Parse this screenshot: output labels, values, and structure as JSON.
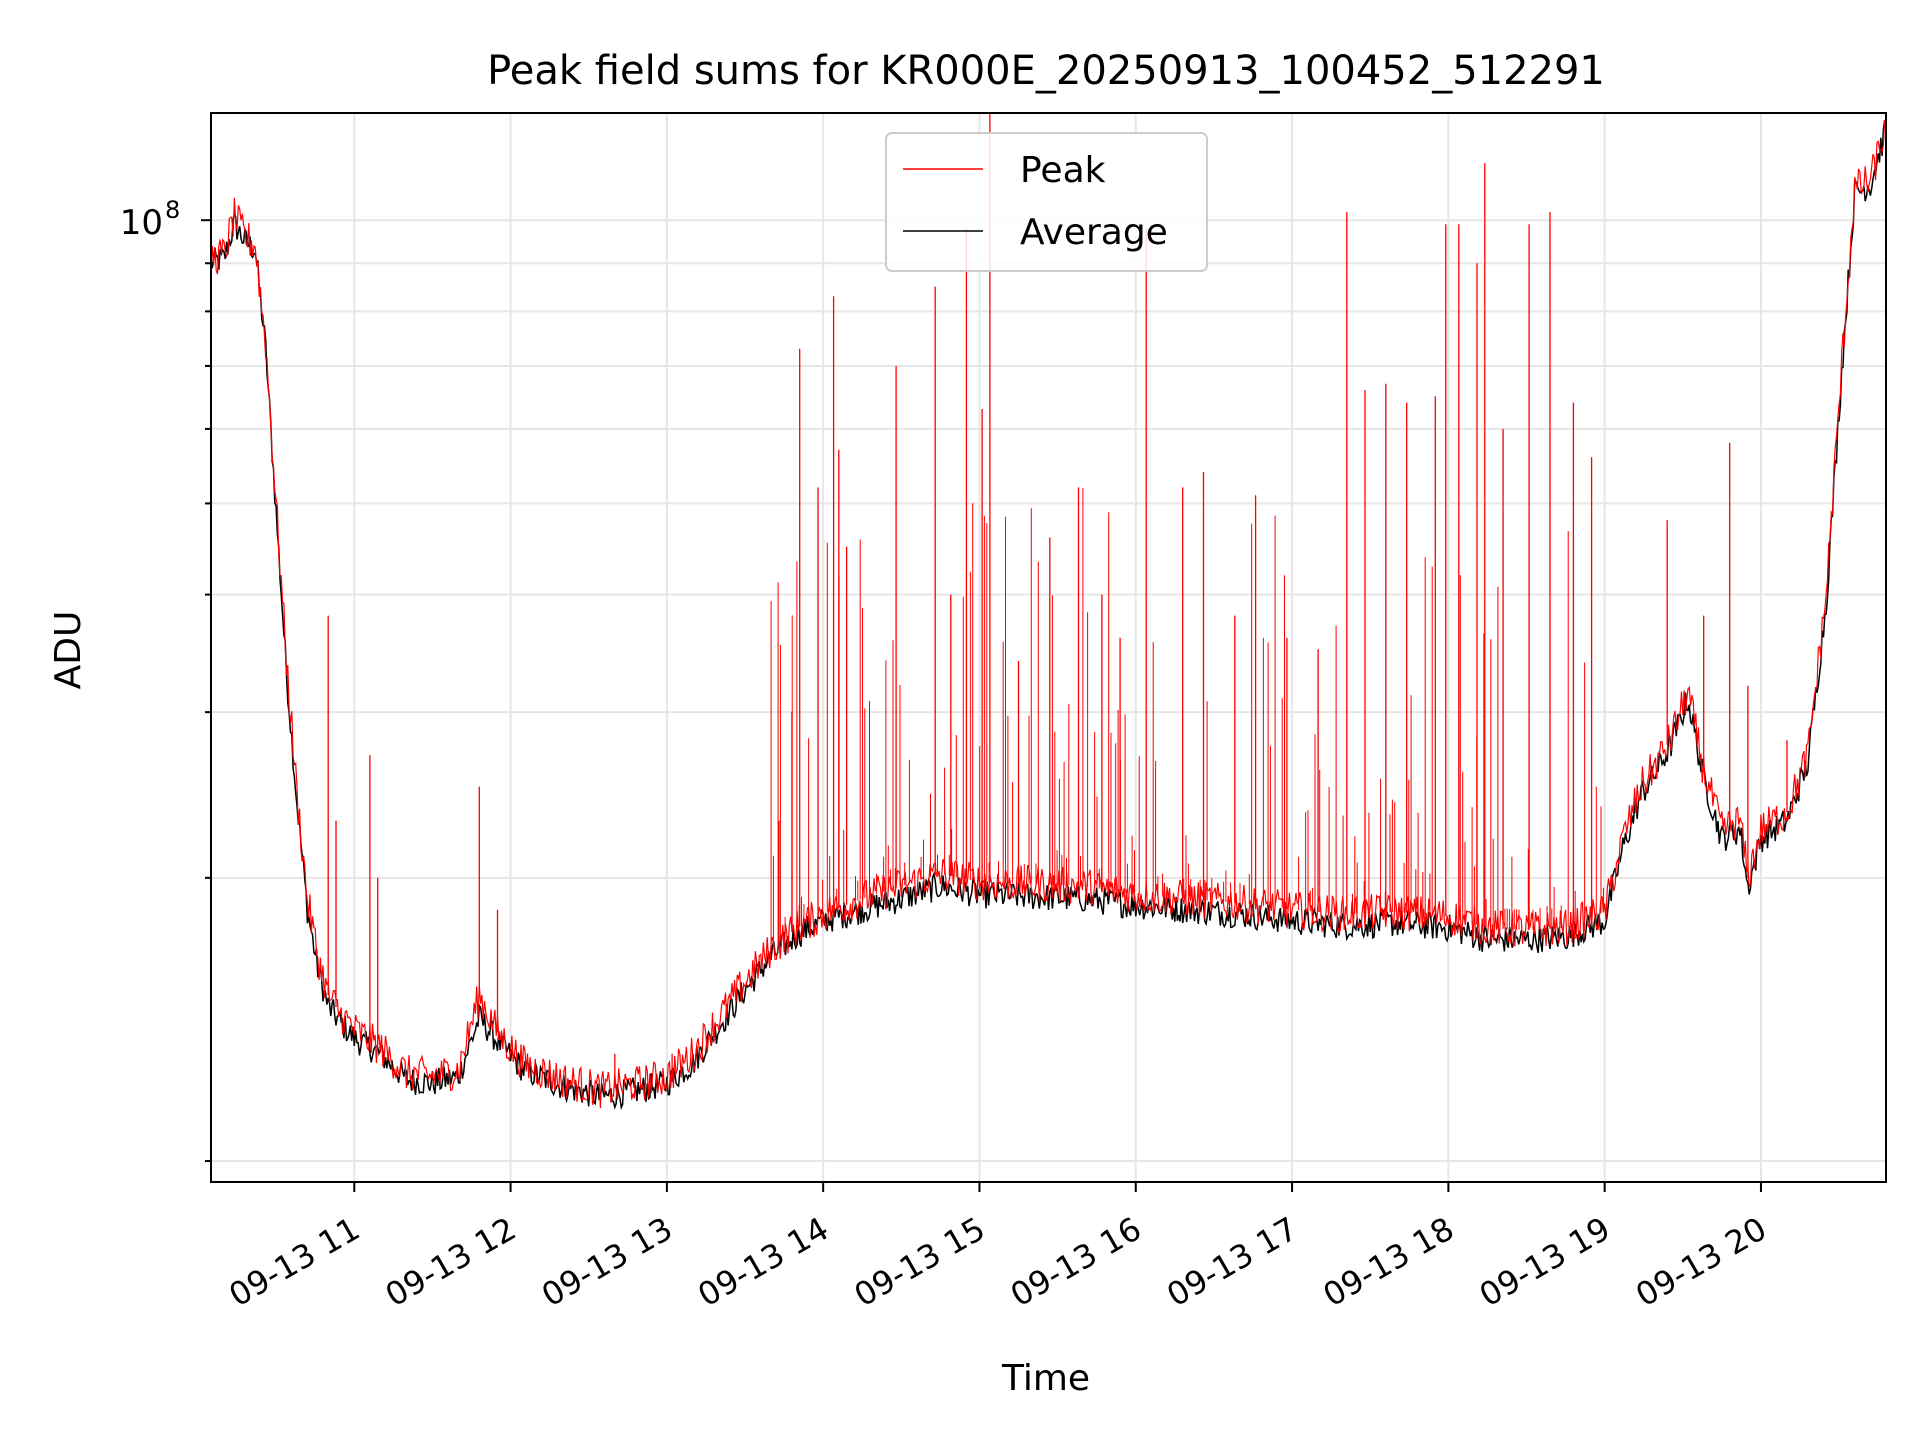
{
  "chart_data": {
    "type": "line",
    "title": "Peak field sums for KR000E_20250913_100452_512291",
    "xlabel": "Time",
    "ylabel": "ADU",
    "yscale": "log",
    "grid": true,
    "legend_placement": "upper center",
    "x_range": [
      "2025-09-13 10:05",
      "2025-09-13 20:48"
    ],
    "y_range": [
      9500000,
      130000000
    ],
    "x_ticks": [
      "09-13 11",
      "09-13 12",
      "09-13 13",
      "09-13 14",
      "09-13 15",
      "09-13 16",
      "09-13 17",
      "09-13 18",
      "09-13 19",
      "09-13 20"
    ],
    "y_tick_labels": [
      {
        "value": 100000000,
        "label": "10",
        "exponent": "8"
      }
    ],
    "series": [
      {
        "name": "Peak",
        "color": "#ff0000",
        "points": [
          [
            "10:05",
            91000000
          ],
          [
            "10:10",
            92000000
          ],
          [
            "10:14",
            101000000
          ],
          [
            "10:18",
            96000000
          ],
          [
            "10:22",
            94000000
          ],
          [
            "10:26",
            74000000
          ],
          [
            "10:30",
            50000000
          ],
          [
            "10:34",
            34000000
          ],
          [
            "10:38",
            24500000
          ],
          [
            "10:42",
            19000000
          ],
          [
            "10:46",
            16500000
          ],
          [
            "10:50",
            15000000
          ],
          [
            "10:55",
            14300000
          ],
          [
            "11:00",
            13800000
          ],
          [
            "11:10",
            13200000
          ],
          [
            "11:20",
            12400000
          ],
          [
            "11:30",
            12300000
          ],
          [
            "11:40",
            12500000
          ],
          [
            "11:48",
            15000000
          ],
          [
            "11:55",
            13700000
          ],
          [
            "12:05",
            12700000
          ],
          [
            "12:20",
            12200000
          ],
          [
            "12:35",
            11900000
          ],
          [
            "12:50",
            12100000
          ],
          [
            "13:00",
            12300000
          ],
          [
            "13:10",
            13000000
          ],
          [
            "13:20",
            14200000
          ],
          [
            "13:30",
            15500000
          ],
          [
            "13:40",
            16800000
          ],
          [
            "13:50",
            17700000
          ],
          [
            "14:00",
            18300000
          ],
          [
            "14:15",
            19000000
          ],
          [
            "14:30",
            19600000
          ],
          [
            "14:45",
            20200000
          ],
          [
            "15:00",
            19800000
          ],
          [
            "15:20",
            19700000
          ],
          [
            "15:40",
            19600000
          ],
          [
            "16:00",
            19200000
          ],
          [
            "16:20",
            19000000
          ],
          [
            "16:40",
            18800000
          ],
          [
            "17:00",
            18500000
          ],
          [
            "17:20",
            18300000
          ],
          [
            "17:40",
            18400000
          ],
          [
            "18:00",
            18200000
          ],
          [
            "18:15",
            17700000
          ],
          [
            "18:30",
            17600000
          ],
          [
            "18:45",
            17700000
          ],
          [
            "19:00",
            18400000
          ],
          [
            "19:07",
            22000000
          ],
          [
            "19:14",
            25000000
          ],
          [
            "19:20",
            26500000
          ],
          [
            "19:25",
            28000000
          ],
          [
            "19:32",
            31500000
          ],
          [
            "19:38",
            26000000
          ],
          [
            "19:45",
            22500000
          ],
          [
            "19:52",
            23000000
          ],
          [
            "19:55",
            20000000
          ],
          [
            "20:00",
            22500000
          ],
          [
            "20:10",
            23500000
          ],
          [
            "20:18",
            27000000
          ],
          [
            "20:25",
            40000000
          ],
          [
            "20:31",
            70000000
          ],
          [
            "20:36",
            108000000
          ],
          [
            "20:42",
            110000000
          ],
          [
            "20:48",
            126000000
          ]
        ],
        "spikes": [
          [
            "10:50",
            38000000
          ],
          [
            "10:53",
            23000000
          ],
          [
            "11:06",
            27000000
          ],
          [
            "11:09",
            20000000
          ],
          [
            "11:48",
            25000000
          ],
          [
            "11:55",
            18500000
          ],
          [
            "12:40",
            13000000
          ],
          [
            "13:02",
            13000000
          ],
          [
            "13:43",
            23000000
          ],
          [
            "13:48",
            30000000
          ],
          [
            "13:51",
            73000000
          ],
          [
            "13:58",
            52000000
          ],
          [
            "14:04",
            83000000
          ],
          [
            "14:06",
            57000000
          ],
          [
            "14:09",
            45000000
          ],
          [
            "14:28",
            70000000
          ],
          [
            "14:43",
            85000000
          ],
          [
            "14:49",
            40000000
          ],
          [
            "14:55",
            98000000
          ],
          [
            "15:01",
            63000000
          ],
          [
            "15:04",
            130000000
          ],
          [
            "15:15",
            34000000
          ],
          [
            "15:27",
            46000000
          ],
          [
            "15:38",
            52000000
          ],
          [
            "15:47",
            40000000
          ],
          [
            "15:54",
            36000000
          ],
          [
            "16:04",
            98000000
          ],
          [
            "16:18",
            52000000
          ],
          [
            "16:26",
            54000000
          ],
          [
            "16:38",
            38000000
          ],
          [
            "16:46",
            51000000
          ],
          [
            "16:58",
            36000000
          ],
          [
            "17:10",
            35000000
          ],
          [
            "17:21",
            102000000
          ],
          [
            "17:28",
            66000000
          ],
          [
            "17:36",
            67000000
          ],
          [
            "17:44",
            64000000
          ],
          [
            "17:55",
            65000000
          ],
          [
            "17:59",
            99000000
          ],
          [
            "18:04",
            99000000
          ],
          [
            "18:11",
            90000000
          ],
          [
            "18:14",
            115000000
          ],
          [
            "18:21",
            60000000
          ],
          [
            "18:31",
            99000000
          ],
          [
            "18:39",
            102000000
          ],
          [
            "18:48",
            64000000
          ],
          [
            "18:55",
            56000000
          ],
          [
            "19:24",
            48000000
          ],
          [
            "19:38",
            38000000
          ],
          [
            "19:48",
            58000000
          ],
          [
            "19:55",
            32000000
          ],
          [
            "20:10",
            28000000
          ]
        ]
      },
      {
        "name": "Average",
        "color": "#000000",
        "points": [
          [
            "10:05",
            90000000
          ],
          [
            "10:10",
            91000000
          ],
          [
            "10:14",
            99000000
          ],
          [
            "10:18",
            95000000
          ],
          [
            "10:22",
            93000000
          ],
          [
            "10:26",
            73000000
          ],
          [
            "10:30",
            49000000
          ],
          [
            "10:34",
            33000000
          ],
          [
            "10:38",
            24000000
          ],
          [
            "10:42",
            18500000
          ],
          [
            "10:46",
            16000000
          ],
          [
            "10:50",
            14600000
          ],
          [
            "10:55",
            14000000
          ],
          [
            "11:00",
            13500000
          ],
          [
            "11:10",
            13000000
          ],
          [
            "11:20",
            12200000
          ],
          [
            "11:30",
            12100000
          ],
          [
            "11:40",
            12300000
          ],
          [
            "11:48",
            14200000
          ],
          [
            "11:55",
            13400000
          ],
          [
            "12:05",
            12500000
          ],
          [
            "12:20",
            12000000
          ],
          [
            "12:35",
            11700000
          ],
          [
            "12:50",
            11900000
          ],
          [
            "13:00",
            12100000
          ],
          [
            "13:10",
            12700000
          ],
          [
            "13:20",
            13900000
          ],
          [
            "13:30",
            15200000
          ],
          [
            "13:40",
            16500000
          ],
          [
            "13:50",
            17400000
          ],
          [
            "14:00",
            18000000
          ],
          [
            "14:15",
            18500000
          ],
          [
            "14:30",
            19000000
          ],
          [
            "14:45",
            19600000
          ],
          [
            "15:00",
            19200000
          ],
          [
            "15:20",
            19100000
          ],
          [
            "15:40",
            19000000
          ],
          [
            "16:00",
            18700000
          ],
          [
            "16:20",
            18500000
          ],
          [
            "16:40",
            18300000
          ],
          [
            "17:00",
            18000000
          ],
          [
            "17:20",
            17800000
          ],
          [
            "17:40",
            17900000
          ],
          [
            "18:00",
            17700000
          ],
          [
            "18:15",
            17200000
          ],
          [
            "18:30",
            17200000
          ],
          [
            "18:45",
            17300000
          ],
          [
            "19:00",
            18000000
          ],
          [
            "19:07",
            21500000
          ],
          [
            "19:14",
            24500000
          ],
          [
            "19:20",
            26000000
          ],
          [
            "19:25",
            27500000
          ],
          [
            "19:32",
            31000000
          ],
          [
            "19:38",
            25500000
          ],
          [
            "19:45",
            22000000
          ],
          [
            "19:52",
            22500000
          ],
          [
            "19:55",
            19500000
          ],
          [
            "20:00",
            22000000
          ],
          [
            "20:10",
            23000000
          ],
          [
            "20:18",
            26500000
          ],
          [
            "20:25",
            39000000
          ],
          [
            "20:31",
            69000000
          ],
          [
            "20:36",
            107000000
          ],
          [
            "20:42",
            109000000
          ],
          [
            "20:48",
            125000000
          ]
        ]
      }
    ]
  }
}
